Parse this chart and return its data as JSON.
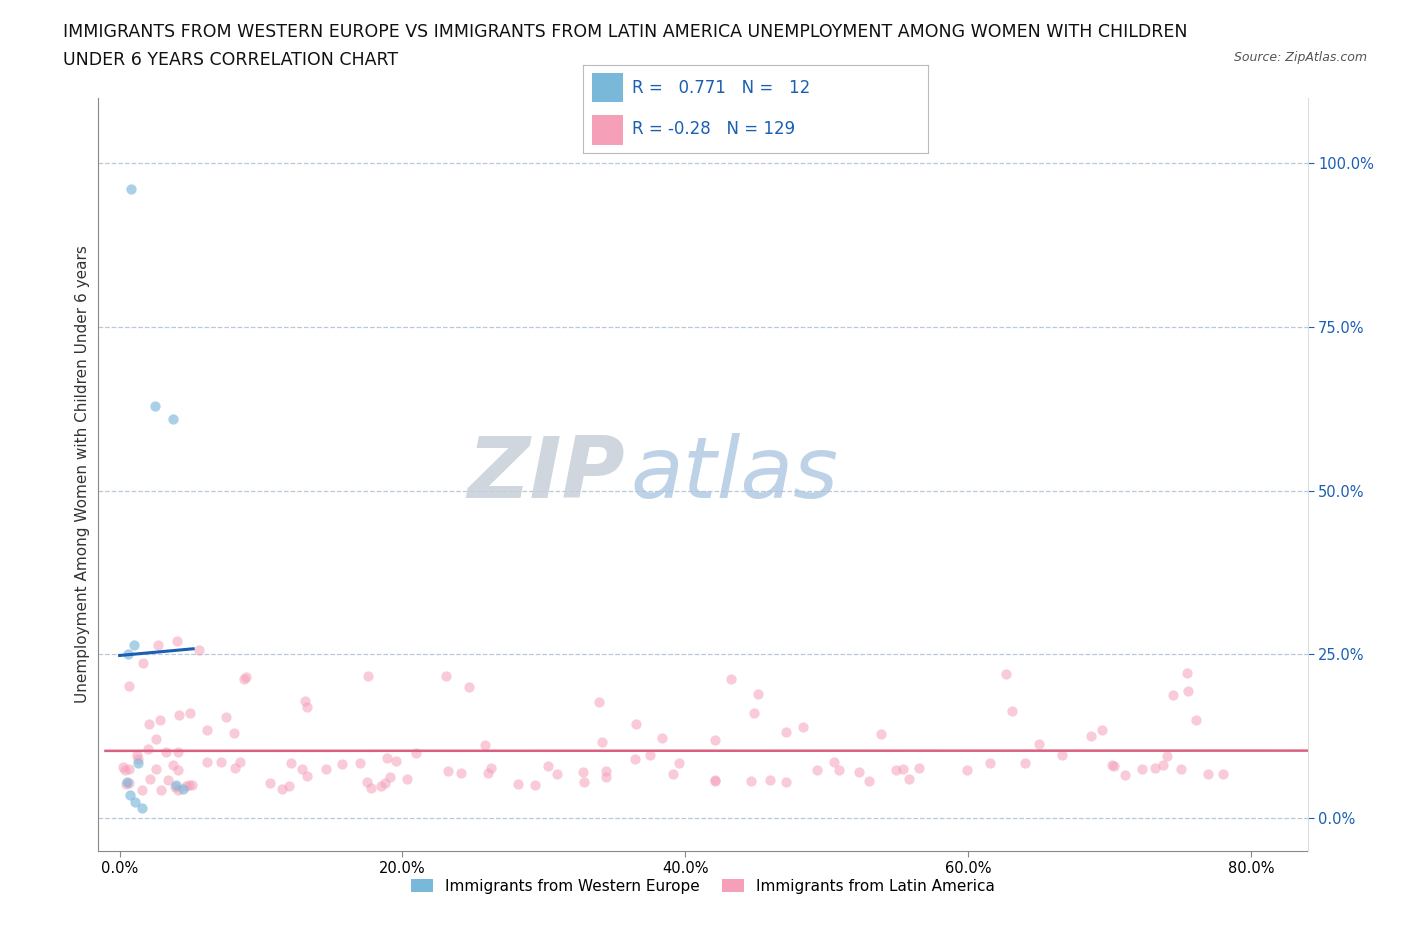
{
  "title_line1": "IMMIGRANTS FROM WESTERN EUROPE VS IMMIGRANTS FROM LATIN AMERICA UNEMPLOYMENT AMONG WOMEN WITH CHILDREN",
  "title_line2": "UNDER 6 YEARS CORRELATION CHART",
  "source": "Source: ZipAtlas.com",
  "ylabel": "Unemployment Among Women with Children Under 6 years",
  "xlabel_vals": [
    0.0,
    20.0,
    40.0,
    60.0,
    80.0
  ],
  "ylabel_vals": [
    0.0,
    25.0,
    50.0,
    75.0,
    100.0
  ],
  "xlim": [
    -1.5,
    84.0
  ],
  "ylim": [
    -5.0,
    110.0
  ],
  "watermark_zip": "ZIP",
  "watermark_atlas": "atlas",
  "blue_R": 0.771,
  "blue_N": 12,
  "pink_R": -0.28,
  "pink_N": 129,
  "blue_color": "#7ab8d9",
  "pink_color": "#f5a0b8",
  "blue_line_color": "#1a5fb4",
  "pink_line_color": "#d96080",
  "blue_scatter_x": [
    0.8,
    2.5,
    3.8,
    0.6,
    1.0,
    1.3,
    0.5,
    4.0,
    4.5,
    0.7,
    1.1,
    1.6
  ],
  "blue_scatter_y": [
    96.0,
    63.0,
    61.0,
    25.0,
    26.5,
    8.5,
    5.5,
    5.0,
    4.5,
    3.5,
    2.5,
    1.5
  ],
  "legend_entries": [
    "Immigrants from Western Europe",
    "Immigrants from Latin America"
  ],
  "bg_color": "#ffffff",
  "grid_color": "#b8c8d8",
  "title_fontsize": 12.5,
  "axis_label_fontsize": 11,
  "tick_fontsize": 10.5,
  "right_tick_color": "#1a5fb4"
}
